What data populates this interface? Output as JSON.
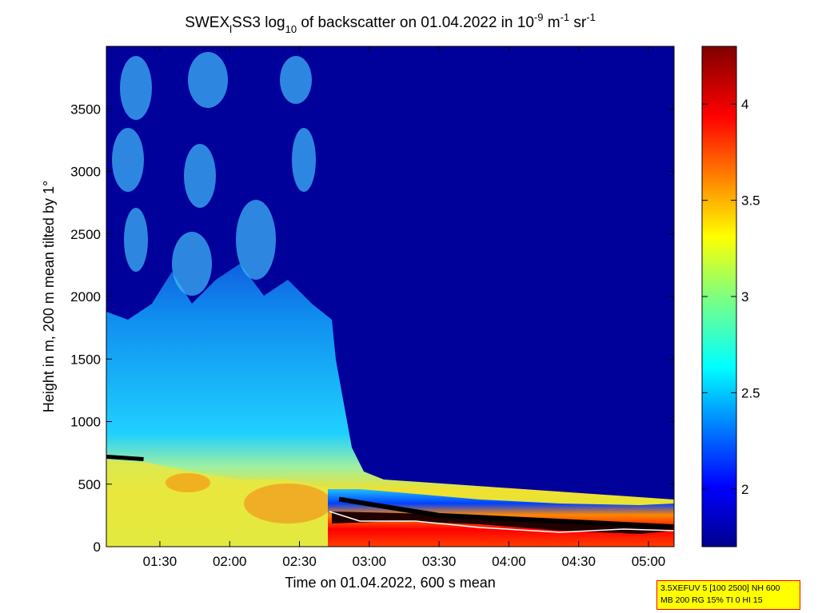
{
  "chart_data": {
    "type": "heatmap",
    "title_parts": {
      "prefix": "SWEX",
      "sub1": "l",
      "mid": "SS3 log",
      "sub2": "10",
      "mid2": " of backscatter on 01.04.2022 in 10",
      "sup1": "-9",
      "mid3": " m",
      "sup2": "-1",
      "mid4": " sr",
      "sup3": "-1"
    },
    "xlabel": "Time on 01.04.2022, 600 s mean",
    "ylabel": "Height in m, 200 m mean tilted by 1°",
    "x_ticks": [
      "01:30",
      "02:00",
      "02:30",
      "03:00",
      "03:30",
      "04:00",
      "04:30",
      "05:00"
    ],
    "y_ticks": [
      "0",
      "500",
      "1000",
      "1500",
      "2000",
      "2500",
      "3000",
      "3500"
    ],
    "xlim": [
      "01:07",
      "05:11"
    ],
    "ylim": [
      0,
      4000
    ],
    "colorbar": {
      "ticks": [
        "2",
        "2.5",
        "3",
        "3.5",
        "4"
      ],
      "range": [
        1.7,
        4.3
      ]
    },
    "layers": {
      "aerosol_top": {
        "description": "cyan aerosol layer top height (m)",
        "before_03": 1450,
        "after_03": 350
      },
      "cloud_base_m": [
        {
          "t": "01:07",
          "h": 720
        },
        {
          "t": "01:23",
          "h": 700
        },
        {
          "t": "02:47",
          "h": 380
        },
        {
          "t": "03:30",
          "h": 250
        },
        {
          "t": "04:15",
          "h": 210
        },
        {
          "t": "05:10",
          "h": 160
        }
      ]
    }
  },
  "info_box": {
    "line1": "3.5XEFUV 5 [100 2500] NH 600",
    "line2": "MB 200 RG 15% TI 0 HI 15"
  }
}
